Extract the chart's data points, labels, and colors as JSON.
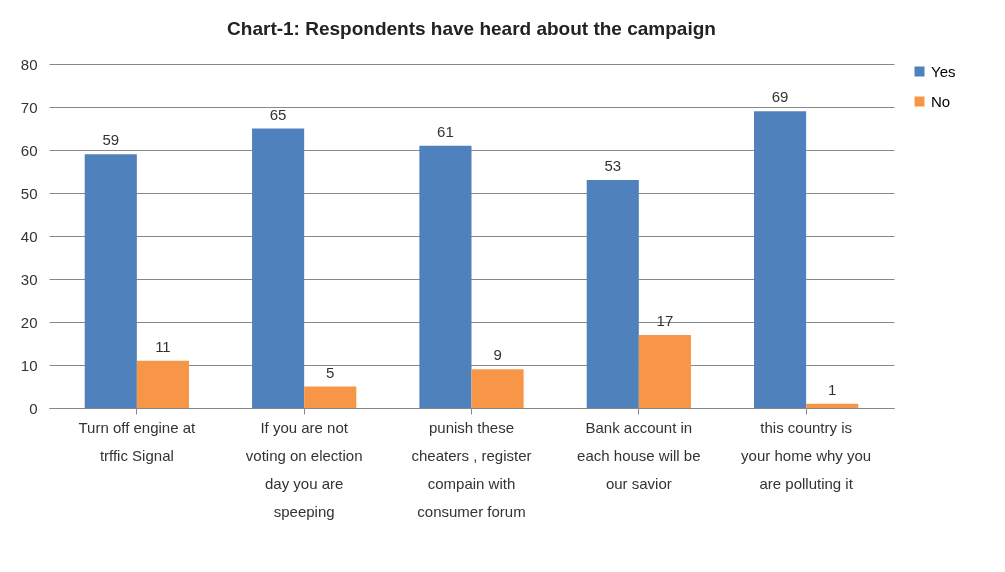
{
  "chart_data": {
    "type": "bar",
    "title": "Chart-1: Respondents have heard about the campaign",
    "categories": [
      "Turn off engine at trffic Signal",
      "If you are not voting on election day you are speeping",
      "punish these cheaters , register compain with consumer forum",
      "Bank account in each house will be our savior",
      "this country is your home why you are polluting it"
    ],
    "series": [
      {
        "name": "Yes",
        "color": "#4f81bd",
        "values": [
          59,
          65,
          61,
          53,
          69
        ]
      },
      {
        "name": "No",
        "color": "#f79646",
        "values": [
          11,
          5,
          9,
          17,
          1
        ]
      }
    ],
    "ylim": [
      0,
      80
    ],
    "yticks": [
      0,
      10,
      20,
      30,
      40,
      50,
      60,
      70,
      80
    ],
    "grid": "y",
    "legend": "right",
    "data_labels": true
  }
}
